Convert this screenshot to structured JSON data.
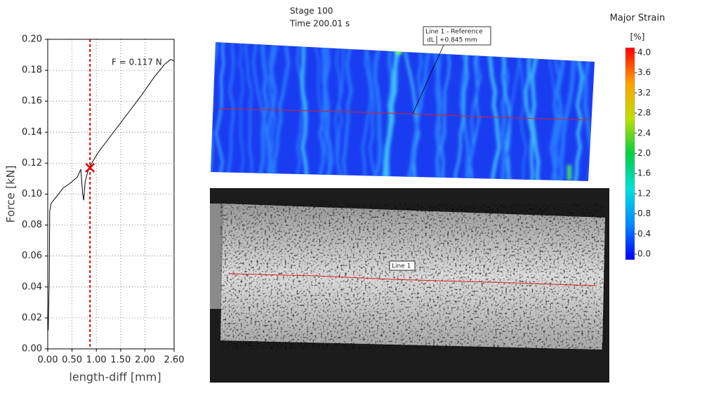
{
  "chart_data": {
    "type": "line",
    "xlabel": "length-diff [mm]",
    "ylabel": "Force [kN]",
    "x": [
      0.01,
      0.03,
      0.04,
      0.07,
      0.17,
      0.32,
      0.46,
      0.61,
      0.68,
      0.72,
      0.74,
      0.77,
      0.82,
      0.87,
      1.04,
      1.33,
      1.62,
      1.91,
      2.2,
      2.41,
      2.53,
      2.6
    ],
    "series": [
      {
        "name": "Force",
        "color": "#000000",
        "values": [
          0.012,
          0.044,
          0.089,
          0.094,
          0.098,
          0.104,
          0.107,
          0.111,
          0.116,
          0.1,
          0.096,
          0.108,
          0.114,
          0.118,
          0.127,
          0.139,
          0.151,
          0.163,
          0.176,
          0.184,
          0.187,
          0.186
        ]
      }
    ],
    "xlim": [
      0,
      2.6
    ],
    "xticks": [
      {
        "value": 0,
        "label": "0.00"
      },
      {
        "value": 0.5,
        "label": "0.50"
      },
      {
        "value": 1,
        "label": "1.00"
      },
      {
        "value": 1.5,
        "label": "1.50"
      },
      {
        "value": 2,
        "label": "2.00"
      },
      {
        "value": 2.6,
        "label": "2.60"
      }
    ],
    "ylim": [
      0,
      0.2
    ],
    "yticks": [
      {
        "value": 0,
        "label": "0.00"
      },
      {
        "value": 0.02,
        "label": "0.02"
      },
      {
        "value": 0.04,
        "label": "0.04"
      },
      {
        "value": 0.06,
        "label": "0.06"
      },
      {
        "value": 0.08,
        "label": "0.08"
      },
      {
        "value": 0.1,
        "label": "0.10"
      },
      {
        "value": 0.12,
        "label": "0.12"
      },
      {
        "value": 0.14,
        "label": "0.14"
      },
      {
        "value": 0.16,
        "label": "0.16"
      },
      {
        "value": 0.18,
        "label": "0.18"
      },
      {
        "value": 0.2,
        "label": "0.20"
      }
    ],
    "grid": true,
    "cursor": {
      "x": 0.87,
      "y": 0.117,
      "color": "#e00000"
    },
    "annotation": "F = 0.117 N"
  },
  "stage": {
    "stage": "Stage 100",
    "time": "Time  200.01 s"
  },
  "strain_map": {
    "callout_title": "Line 1 - Reference",
    "callout_label": "dL",
    "callout_value": "+0.845 mm"
  },
  "camera_image": {
    "callout": "Line 1"
  },
  "colorbar": {
    "title": "Major Strain",
    "unit": "[%]",
    "lim": [
      0,
      4
    ],
    "ticks": [
      {
        "value": 0,
        "label": "0.0"
      },
      0.4,
      0.8,
      1.2,
      1.6,
      {
        "value": 2,
        "label": "2.0"
      },
      2.4,
      2.8,
      3.2,
      3.6,
      {
        "value": 4,
        "label": "4.0"
      }
    ],
    "colors": [
      "#0000ff",
      "#0088ff",
      "#00e0e0",
      "#00d040",
      "#c0e000",
      "#ffa000",
      "#ff0000"
    ]
  }
}
